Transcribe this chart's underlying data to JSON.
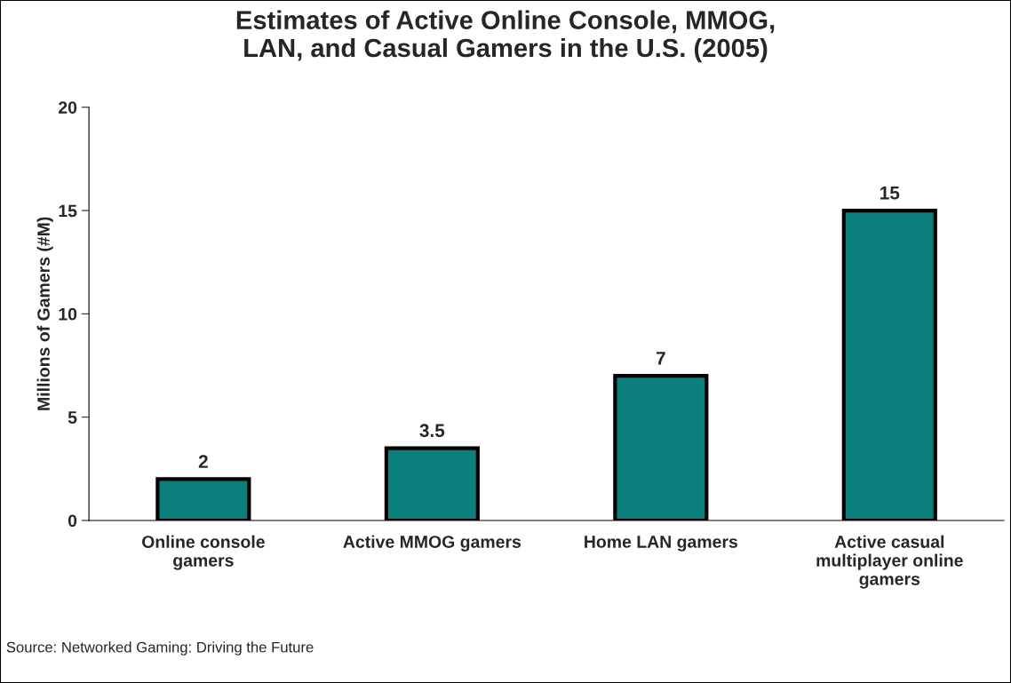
{
  "chart_data": {
    "type": "bar",
    "title": "Estimates of Active Online Console, MMOG,\nLAN, and Casual Gamers in the U.S. (2005)",
    "ylabel": "Millions of Gamers (#M)",
    "categories": [
      "Online console\ngamers",
      "Active MMOG gamers",
      "Home LAN gamers",
      "Active casual\nmultiplayer online\ngamers"
    ],
    "values": [
      2,
      3.5,
      7,
      15
    ],
    "color": "#0b7f7b",
    "ylim": [
      0,
      20
    ],
    "yticks": [
      0,
      5,
      10,
      15,
      20
    ],
    "grid": false,
    "data_labels": true,
    "annotations": [
      "Source: Networked Gaming: Driving the Future"
    ]
  }
}
